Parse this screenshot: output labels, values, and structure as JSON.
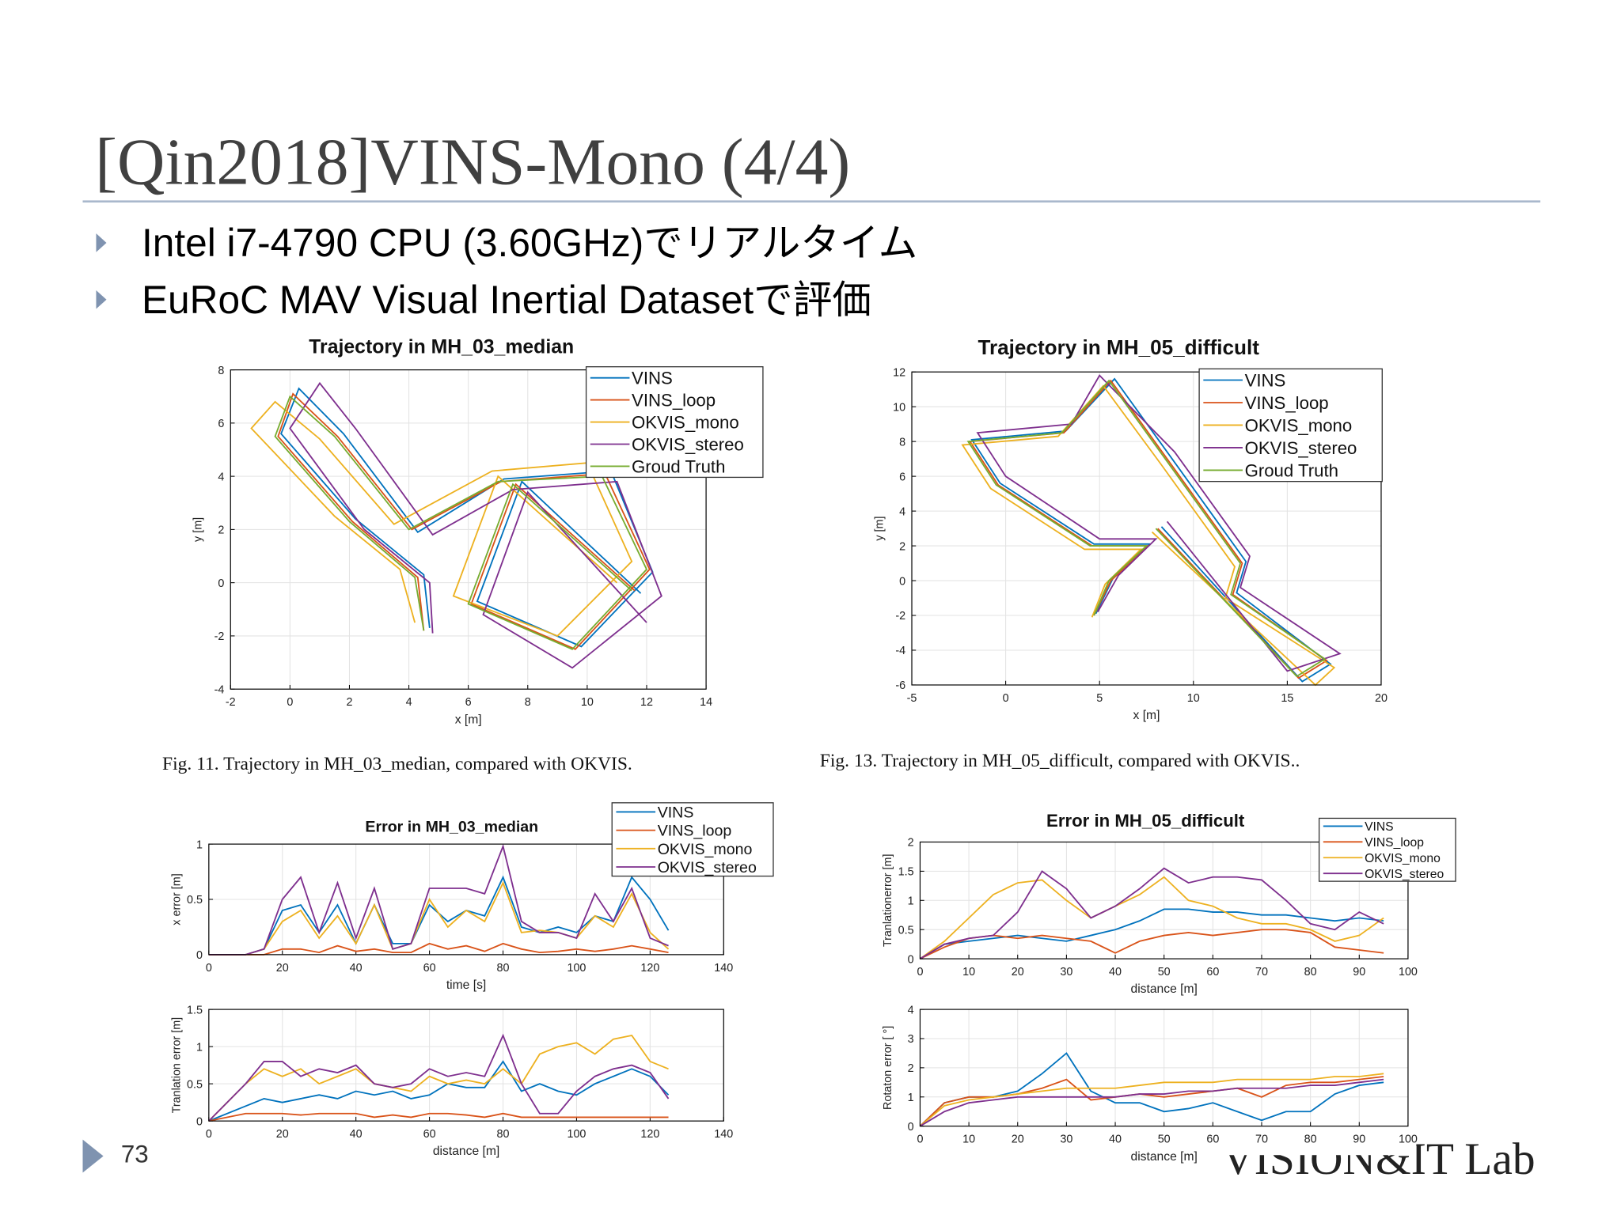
{
  "slide": {
    "title": "[Qin2018]VINS-Mono (4/4)",
    "bullets": [
      "Intel i7-4790 CPU (3.60GHz)でリアルタイム",
      "EuRoC MAV Visual Inertial Datasetで評価"
    ],
    "page_number": "73",
    "logo": "VISION&IT Lab"
  },
  "chart_data": [
    {
      "type": "line",
      "title": "Trajectory in MH_03_median",
      "caption": "Fig. 11.  Trajectory in MH_03_median, compared with OKVIS.",
      "x_label": "x [m]",
      "y_label": "y [m]",
      "xlim": [
        -2,
        14
      ],
      "xticks": [
        -2,
        0,
        2,
        4,
        6,
        8,
        10,
        12,
        14
      ],
      "ylim": [
        -4,
        8
      ],
      "yticks": [
        -4,
        -2,
        0,
        2,
        4,
        6,
        8
      ],
      "grid": true,
      "series": [
        {
          "name": "VINS",
          "color": "#0072bd",
          "x": [
            4.7,
            4.5,
            2.2,
            -0.3,
            0.3,
            1.8,
            4.3,
            7.2,
            10.8,
            12.2,
            9.8,
            6.3,
            7.8,
            11.8
          ],
          "values": [
            -1.7,
            0.3,
            2.4,
            5.6,
            7.3,
            5.6,
            1.9,
            3.9,
            4.2,
            0.4,
            -2.4,
            -0.7,
            3.8,
            -0.4
          ]
        },
        {
          "name": "VINS_loop",
          "color": "#d95319",
          "x": [
            4.5,
            4.3,
            2.1,
            -0.4,
            0.1,
            1.6,
            4.1,
            7.1,
            10.6,
            12.1,
            9.6,
            6.1,
            7.6,
            11.6
          ],
          "values": [
            -1.8,
            0.2,
            2.3,
            5.5,
            7.1,
            5.5,
            2,
            3.8,
            4.1,
            0.5,
            -2.5,
            -0.8,
            3.7,
            -0.3
          ]
        },
        {
          "name": "OKVIS_mono",
          "color": "#edb120",
          "x": [
            4.2,
            3.7,
            1.5,
            -1.3,
            -0.5,
            1,
            3.5,
            6.8,
            10,
            11.5,
            9,
            5.5,
            7,
            11
          ],
          "values": [
            -1.5,
            0.5,
            2.5,
            5.8,
            6.8,
            5.4,
            2.2,
            4.2,
            4.5,
            0.8,
            -2,
            -0.5,
            4,
            0
          ]
        },
        {
          "name": "OKVIS_stereo",
          "color": "#7e2f8e",
          "x": [
            4.8,
            4.7,
            2.5,
            0,
            1,
            2.2,
            4.8,
            7.5,
            11,
            12.5,
            9.5,
            6.5,
            8,
            12
          ],
          "values": [
            -1.9,
            0,
            2,
            5.8,
            7.5,
            5.8,
            1.8,
            3.5,
            3.8,
            -0.5,
            -3.2,
            -1.2,
            3.4,
            -1.5
          ]
        },
        {
          "name": "Groud Truth",
          "color": "#77ac30",
          "x": [
            4.5,
            4.2,
            2,
            -0.5,
            0,
            1.5,
            4,
            7,
            10.5,
            12,
            9.5,
            6,
            7.5,
            11.5
          ],
          "values": [
            -1.8,
            0.2,
            2.3,
            5.5,
            7,
            5.5,
            2,
            3.8,
            4,
            0.5,
            -2.5,
            -0.8,
            3.7,
            -0.3
          ]
        }
      ]
    },
    {
      "type": "line",
      "title": "Trajectory in MH_05_difficult",
      "caption": "Fig. 13.  Trajectory in MH_05_difficult, compared with OKVIS..",
      "x_label": "x [m]",
      "y_label": "y [m]",
      "xlim": [
        -5,
        20
      ],
      "xticks": [
        -5,
        0,
        5,
        10,
        15,
        20
      ],
      "ylim": [
        -6,
        12
      ],
      "yticks": [
        -6,
        -4,
        -2,
        0,
        2,
        4,
        6,
        8,
        10,
        12
      ],
      "grid": true,
      "series": [
        {
          "name": "VINS",
          "color": "#0072bd",
          "x": [
            4.8,
            5.7,
            7.7,
            4.7,
            -0.3,
            -1.8,
            3.2,
            5.8,
            8.8,
            12.8,
            12.3,
            17.3,
            15.8,
            8.3
          ],
          "values": [
            -1.9,
            0.1,
            2.1,
            2.1,
            5.6,
            8.1,
            8.6,
            11.6,
            7.1,
            1.1,
            -0.7,
            -4.8,
            -5.8,
            3.1
          ]
        },
        {
          "name": "VINS_loop",
          "color": "#d95319",
          "x": [
            4.7,
            5.6,
            7.6,
            4.6,
            -0.4,
            -1.9,
            3.1,
            5.6,
            8.6,
            12.6,
            12.1,
            17.1,
            15.6,
            8.1
          ],
          "values": [
            -2,
            0,
            2,
            2,
            5.5,
            8,
            8.5,
            11.5,
            7,
            1,
            -0.8,
            -4.6,
            -5.6,
            3
          ]
        },
        {
          "name": "OKVIS_mono",
          "color": "#edb120",
          "x": [
            4.6,
            5.3,
            7.2,
            4.2,
            -0.8,
            -2.3,
            2.8,
            5.2,
            8.2,
            12.2,
            11.7,
            17.5,
            16.5,
            7.8
          ],
          "values": [
            -2.1,
            -0.2,
            1.8,
            1.8,
            5.3,
            7.8,
            8.3,
            11.2,
            6.8,
            0.8,
            -1,
            -5,
            -6,
            2.8
          ]
        },
        {
          "name": "OKVIS_stereo",
          "color": "#7e2f8e",
          "x": [
            4.9,
            6,
            8,
            5,
            0,
            -1.5,
            3.5,
            5,
            9,
            13,
            12.5,
            17.8,
            15,
            8.6
          ],
          "values": [
            -1.8,
            0.3,
            2.4,
            2.4,
            6,
            8.5,
            9,
            11.8,
            7.4,
            1.4,
            -0.4,
            -4.2,
            -5.2,
            3.4
          ]
        },
        {
          "name": "Groud Truth",
          "color": "#77ac30",
          "x": [
            4.7,
            5.5,
            7.5,
            4.5,
            -0.5,
            -2,
            3,
            5.5,
            8.5,
            12.5,
            12,
            17,
            15.5,
            8
          ],
          "values": [
            -2,
            0,
            2,
            2,
            5.5,
            8,
            8.5,
            11.5,
            7,
            1,
            -0.8,
            -4.5,
            -5.5,
            3
          ]
        }
      ]
    },
    {
      "type": "line",
      "title": "Error in MH_03_median",
      "x_label": "time [s]",
      "y_label": "x error [m]",
      "xlim": [
        0,
        140
      ],
      "xticks": [
        0,
        20,
        40,
        60,
        80,
        100,
        120,
        140
      ],
      "ylim": [
        0,
        1
      ],
      "yticks": [
        0,
        0.5,
        1
      ],
      "grid": true,
      "x": [
        0,
        10,
        15,
        20,
        25,
        30,
        35,
        40,
        45,
        50,
        55,
        60,
        65,
        70,
        75,
        80,
        85,
        90,
        95,
        100,
        105,
        110,
        115,
        120,
        125
      ],
      "series": [
        {
          "name": "VINS",
          "color": "#0072bd",
          "values": [
            0,
            0,
            0.05,
            0.4,
            0.45,
            0.2,
            0.45,
            0.1,
            0.45,
            0.1,
            0.1,
            0.45,
            0.3,
            0.4,
            0.35,
            0.7,
            0.25,
            0.2,
            0.25,
            0.2,
            0.35,
            0.3,
            0.7,
            0.5,
            0.22
          ]
        },
        {
          "name": "VINS_loop",
          "color": "#d95319",
          "values": [
            0,
            0,
            0,
            0.05,
            0.05,
            0.02,
            0.08,
            0.03,
            0.05,
            0.02,
            0.02,
            0.1,
            0.05,
            0.08,
            0.03,
            0.1,
            0.05,
            0.02,
            0.03,
            0.05,
            0.03,
            0.05,
            0.08,
            0.05,
            0.02
          ]
        },
        {
          "name": "OKVIS_mono",
          "color": "#edb120",
          "values": [
            0,
            0,
            0.05,
            0.3,
            0.4,
            0.15,
            0.35,
            0.1,
            0.45,
            0.05,
            0.1,
            0.5,
            0.25,
            0.4,
            0.3,
            0.65,
            0.2,
            0.22,
            0.2,
            0.15,
            0.35,
            0.25,
            0.55,
            0.2,
            0.05
          ]
        },
        {
          "name": "OKVIS_stereo",
          "color": "#7e2f8e",
          "values": [
            0,
            0,
            0.05,
            0.5,
            0.7,
            0.2,
            0.65,
            0.15,
            0.6,
            0.05,
            0.1,
            0.6,
            0.6,
            0.6,
            0.55,
            0.98,
            0.3,
            0.2,
            0.2,
            0.15,
            0.55,
            0.3,
            0.6,
            0.15,
            0.08
          ]
        }
      ]
    },
    {
      "type": "line",
      "x_label": "distance [m]",
      "y_label": "Tranlation error [m]",
      "xlim": [
        0,
        140
      ],
      "xticks": [
        0,
        20,
        40,
        60,
        80,
        100,
        120,
        140
      ],
      "ylim": [
        0,
        1.5
      ],
      "yticks": [
        0,
        0.5,
        1,
        1.5
      ],
      "grid": true,
      "x": [
        0,
        10,
        15,
        20,
        25,
        30,
        35,
        40,
        45,
        50,
        55,
        60,
        65,
        70,
        75,
        80,
        85,
        90,
        95,
        100,
        105,
        110,
        115,
        120,
        125
      ],
      "series": [
        {
          "name": "VINS",
          "color": "#0072bd",
          "values": [
            0,
            0.2,
            0.3,
            0.25,
            0.3,
            0.35,
            0.3,
            0.4,
            0.35,
            0.4,
            0.3,
            0.35,
            0.5,
            0.45,
            0.45,
            0.8,
            0.4,
            0.5,
            0.4,
            0.35,
            0.5,
            0.6,
            0.7,
            0.6,
            0.35
          ]
        },
        {
          "name": "VINS_loop",
          "color": "#d95319",
          "values": [
            0,
            0.1,
            0.1,
            0.1,
            0.08,
            0.1,
            0.1,
            0.1,
            0.05,
            0.08,
            0.05,
            0.1,
            0.1,
            0.08,
            0.05,
            0.1,
            0.05,
            0.05,
            0.05,
            0.05,
            0.05,
            0.05,
            0.05,
            0.05,
            0.05
          ]
        },
        {
          "name": "OKVIS_mono",
          "color": "#edb120",
          "values": [
            0,
            0.5,
            0.7,
            0.6,
            0.7,
            0.5,
            0.6,
            0.7,
            0.5,
            0.45,
            0.4,
            0.6,
            0.5,
            0.55,
            0.5,
            0.7,
            0.5,
            0.9,
            1.0,
            1.05,
            0.9,
            1.1,
            1.15,
            0.8,
            0.7
          ]
        },
        {
          "name": "OKVIS_stereo",
          "color": "#7e2f8e",
          "values": [
            0,
            0.5,
            0.8,
            0.8,
            0.6,
            0.7,
            0.65,
            0.75,
            0.5,
            0.45,
            0.5,
            0.7,
            0.6,
            0.65,
            0.6,
            1.15,
            0.5,
            0.1,
            0.1,
            0.4,
            0.6,
            0.7,
            0.75,
            0.65,
            0.3
          ]
        }
      ]
    },
    {
      "type": "line",
      "title": "Error in MH_05_difficult",
      "x_label": "distance [m]",
      "y_label": "Tranlationerror [m]",
      "xlim": [
        0,
        100
      ],
      "xticks": [
        0,
        10,
        20,
        30,
        40,
        50,
        60,
        70,
        80,
        90,
        100
      ],
      "ylim": [
        0,
        2
      ],
      "yticks": [
        0,
        0.5,
        1,
        1.5,
        2
      ],
      "grid": true,
      "x": [
        0,
        5,
        10,
        15,
        20,
        25,
        30,
        35,
        40,
        45,
        50,
        55,
        60,
        65,
        70,
        75,
        80,
        85,
        90,
        95
      ],
      "series": [
        {
          "name": "VINS",
          "color": "#0072bd",
          "values": [
            0,
            0.25,
            0.3,
            0.35,
            0.4,
            0.35,
            0.3,
            0.4,
            0.5,
            0.65,
            0.85,
            0.85,
            0.8,
            0.8,
            0.75,
            0.75,
            0.7,
            0.65,
            0.7,
            0.65
          ]
        },
        {
          "name": "VINS_loop",
          "color": "#d95319",
          "values": [
            0,
            0.2,
            0.35,
            0.4,
            0.35,
            0.4,
            0.35,
            0.3,
            0.1,
            0.3,
            0.4,
            0.45,
            0.4,
            0.45,
            0.5,
            0.5,
            0.45,
            0.2,
            0.15,
            0.1
          ]
        },
        {
          "name": "OKVIS_mono",
          "color": "#edb120",
          "values": [
            0,
            0.3,
            0.7,
            1.1,
            1.3,
            1.35,
            1.0,
            0.7,
            0.9,
            1.1,
            1.4,
            1.0,
            0.9,
            0.7,
            0.6,
            0.6,
            0.5,
            0.3,
            0.4,
            0.7
          ]
        },
        {
          "name": "OKVIS_stereo",
          "color": "#7e2f8e",
          "values": [
            0,
            0.25,
            0.35,
            0.4,
            0.8,
            1.5,
            1.2,
            0.7,
            0.9,
            1.2,
            1.55,
            1.3,
            1.4,
            1.4,
            1.35,
            1.0,
            0.6,
            0.5,
            0.8,
            0.6
          ]
        }
      ]
    },
    {
      "type": "line",
      "x_label": "distance [m]",
      "y_label": "Rotaton error [ °]",
      "xlim": [
        0,
        100
      ],
      "xticks": [
        0,
        10,
        20,
        30,
        40,
        50,
        60,
        70,
        80,
        90,
        100
      ],
      "ylim": [
        0,
        4
      ],
      "yticks": [
        0,
        1,
        2,
        3,
        4
      ],
      "grid": true,
      "x": [
        0,
        5,
        10,
        15,
        20,
        25,
        30,
        35,
        40,
        45,
        50,
        55,
        60,
        65,
        70,
        75,
        80,
        85,
        90,
        95
      ],
      "series": [
        {
          "name": "VINS",
          "color": "#0072bd",
          "values": [
            0,
            0.8,
            1.0,
            1.0,
            1.2,
            1.8,
            2.5,
            1.2,
            0.8,
            0.8,
            0.5,
            0.6,
            0.8,
            0.5,
            0.2,
            0.5,
            0.5,
            1.1,
            1.4,
            1.5
          ]
        },
        {
          "name": "VINS_loop",
          "color": "#d95319",
          "values": [
            0,
            0.8,
            1.0,
            1.0,
            1.1,
            1.3,
            1.6,
            0.9,
            1.0,
            1.1,
            1.0,
            1.1,
            1.2,
            1.3,
            1.0,
            1.4,
            1.5,
            1.5,
            1.6,
            1.7
          ]
        },
        {
          "name": "OKVIS_mono",
          "color": "#edb120",
          "values": [
            0,
            0.7,
            0.9,
            1.0,
            1.1,
            1.2,
            1.3,
            1.3,
            1.3,
            1.4,
            1.5,
            1.5,
            1.5,
            1.6,
            1.6,
            1.6,
            1.6,
            1.7,
            1.7,
            1.8
          ]
        },
        {
          "name": "OKVIS_stereo",
          "color": "#7e2f8e",
          "values": [
            0,
            0.5,
            0.8,
            0.9,
            1.0,
            1.0,
            1.0,
            1.0,
            1.0,
            1.1,
            1.1,
            1.2,
            1.2,
            1.3,
            1.3,
            1.3,
            1.4,
            1.4,
            1.5,
            1.6
          ]
        }
      ]
    }
  ]
}
